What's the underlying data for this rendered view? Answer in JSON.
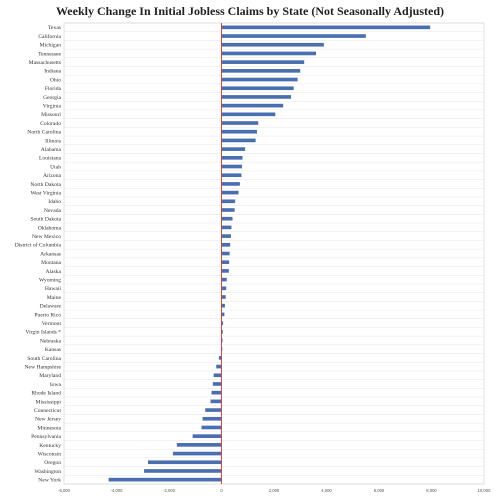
{
  "chart_data": {
    "type": "bar",
    "orientation": "horizontal",
    "title": "Weekly Change In Initial Jobless Claims by State (Not Seasonally Adjusted)",
    "xlabel": "",
    "ylabel": "",
    "xlim": [
      -6000,
      10000
    ],
    "xticks": [
      -6000,
      -4000,
      -2000,
      0,
      2000,
      4000,
      6000,
      8000,
      10000
    ],
    "xtick_labels": [
      "-6,000",
      "-4,000",
      "-2,000",
      "0",
      "2,000",
      "4,000",
      "6,000",
      "8,000",
      "10,000"
    ],
    "grid": true,
    "zero_line_color": "#e03030",
    "bar_color": "#4a6fb0",
    "categories": [
      "Texas",
      "California",
      "Michigan",
      "Tennessee",
      "Massachusetts",
      "Indiana",
      "Ohio",
      "Florida",
      "Georgia",
      "Virginia",
      "Missouri",
      "Colorado",
      "North Carolina",
      "Illinois",
      "Alabama",
      "Louisiana",
      "Utah",
      "Arizona",
      "North Dakota",
      "West Virginia",
      "Idaho",
      "Nevada",
      "South Dakota",
      "Oklahoma",
      "New Mexico",
      "District of Columbia",
      "Arkansas",
      "Montana",
      "Alaska",
      "Wyoming",
      "Hawaii",
      "Maine",
      "Delaware",
      "Puerto Rico",
      "Vermont",
      "Virgin Islands *",
      "Nebraska",
      "Kansas",
      "South Carolina",
      "New Hampshire",
      "Maryland",
      "Iowa",
      "Rhode Island",
      "Mississippi",
      "Connecticut",
      "New Jersey",
      "Minnesota",
      "Pennsylvania",
      "Kentucky",
      "Wisconsin",
      "Oregon",
      "Washington",
      "New York"
    ],
    "values": [
      7950,
      5500,
      3900,
      3600,
      3150,
      3000,
      2900,
      2750,
      2650,
      2350,
      2050,
      1400,
      1350,
      1300,
      900,
      800,
      780,
      760,
      700,
      650,
      520,
      500,
      420,
      380,
      360,
      330,
      310,
      290,
      280,
      200,
      180,
      160,
      130,
      110,
      60,
      50,
      40,
      30,
      -100,
      -200,
      -300,
      -330,
      -380,
      -420,
      -620,
      -720,
      -760,
      -1100,
      -1700,
      -1850,
      -2800,
      -2950,
      -4300
    ]
  }
}
